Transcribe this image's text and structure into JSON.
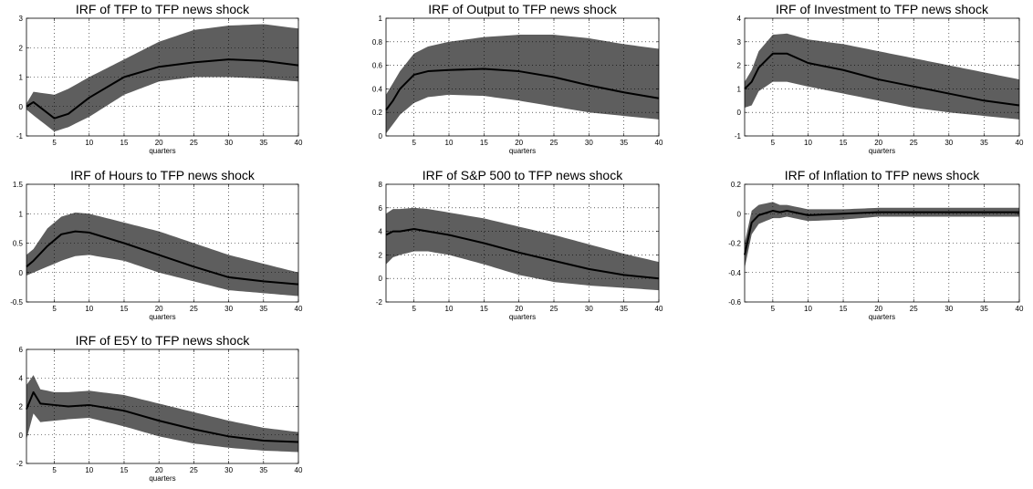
{
  "figure": {
    "background": "#ffffff",
    "band_color": "#5e5e5e",
    "line_color": "#000000",
    "grid": true
  },
  "chart_data": [
    {
      "type": "area",
      "title": "IRF of TFP to TFP news shock",
      "xlabel": "quarters",
      "ylabel": "",
      "xlim": [
        1,
        40
      ],
      "ylim": [
        -1,
        3
      ],
      "xticks": [
        5,
        10,
        15,
        20,
        25,
        30,
        35,
        40
      ],
      "yticks": [
        -1,
        0,
        1,
        2,
        3
      ],
      "x": [
        1,
        2,
        5,
        7,
        10,
        15,
        20,
        25,
        30,
        35,
        40
      ],
      "series": [
        {
          "role": "median",
          "values": [
            0.0,
            0.15,
            -0.4,
            -0.25,
            0.3,
            1.0,
            1.35,
            1.5,
            1.6,
            1.55,
            1.4
          ]
        },
        {
          "role": "upper",
          "values": [
            0.1,
            0.5,
            0.4,
            0.6,
            1.0,
            1.6,
            2.2,
            2.6,
            2.75,
            2.8,
            2.65
          ]
        },
        {
          "role": "lower",
          "values": [
            -0.1,
            -0.3,
            -0.85,
            -0.7,
            -0.35,
            0.4,
            0.85,
            1.0,
            1.0,
            0.95,
            0.85
          ]
        }
      ]
    },
    {
      "type": "area",
      "title": "IRF of Output to TFP news shock",
      "xlabel": "quarters",
      "ylabel": "",
      "xlim": [
        1,
        40
      ],
      "ylim": [
        0,
        1
      ],
      "xticks": [
        5,
        10,
        15,
        20,
        25,
        30,
        35,
        40
      ],
      "yticks": [
        0,
        0.2,
        0.4,
        0.6,
        0.8,
        1
      ],
      "x": [
        1,
        2,
        3,
        5,
        7,
        10,
        15,
        20,
        25,
        30,
        35,
        40
      ],
      "series": [
        {
          "role": "median",
          "values": [
            0.22,
            0.3,
            0.4,
            0.52,
            0.55,
            0.56,
            0.57,
            0.55,
            0.5,
            0.43,
            0.37,
            0.32
          ]
        },
        {
          "role": "upper",
          "values": [
            0.35,
            0.45,
            0.55,
            0.7,
            0.76,
            0.8,
            0.84,
            0.86,
            0.86,
            0.83,
            0.78,
            0.74
          ]
        },
        {
          "role": "lower",
          "values": [
            0.02,
            0.1,
            0.18,
            0.28,
            0.33,
            0.35,
            0.34,
            0.3,
            0.25,
            0.2,
            0.17,
            0.14
          ]
        }
      ]
    },
    {
      "type": "area",
      "title": "IRF of Investment to TFP news shock",
      "xlabel": "quarters",
      "ylabel": "",
      "xlim": [
        1,
        40
      ],
      "ylim": [
        -1,
        4
      ],
      "xticks": [
        5,
        10,
        15,
        20,
        25,
        30,
        35,
        40
      ],
      "yticks": [
        -1,
        0,
        1,
        2,
        3,
        4
      ],
      "x": [
        1,
        2,
        3,
        5,
        7,
        10,
        15,
        20,
        25,
        30,
        35,
        40
      ],
      "series": [
        {
          "role": "median",
          "values": [
            1.0,
            1.3,
            1.9,
            2.5,
            2.5,
            2.1,
            1.8,
            1.4,
            1.1,
            0.8,
            0.5,
            0.3
          ]
        },
        {
          "role": "upper",
          "values": [
            1.3,
            1.8,
            2.6,
            3.3,
            3.35,
            3.1,
            2.9,
            2.6,
            2.3,
            2.0,
            1.7,
            1.4
          ]
        },
        {
          "role": "lower",
          "values": [
            0.2,
            0.3,
            0.9,
            1.3,
            1.3,
            1.1,
            0.8,
            0.5,
            0.2,
            0.0,
            -0.15,
            -0.3
          ]
        }
      ]
    },
    {
      "type": "area",
      "title": "IRF of Hours to TFP news shock",
      "xlabel": "quarters",
      "ylabel": "",
      "xlim": [
        1,
        40
      ],
      "ylim": [
        -0.5,
        1.5
      ],
      "xticks": [
        5,
        10,
        15,
        20,
        25,
        30,
        35,
        40
      ],
      "yticks": [
        -0.5,
        0,
        0.5,
        1,
        1.5
      ],
      "x": [
        1,
        2,
        4,
        6,
        8,
        10,
        15,
        20,
        25,
        30,
        35,
        40
      ],
      "series": [
        {
          "role": "median",
          "values": [
            0.1,
            0.2,
            0.45,
            0.65,
            0.7,
            0.68,
            0.5,
            0.3,
            0.1,
            -0.08,
            -0.15,
            -0.2
          ]
        },
        {
          "role": "upper",
          "values": [
            0.3,
            0.4,
            0.75,
            0.95,
            1.02,
            1.0,
            0.85,
            0.7,
            0.5,
            0.3,
            0.15,
            0.0
          ]
        },
        {
          "role": "lower",
          "values": [
            -0.05,
            0.0,
            0.1,
            0.2,
            0.28,
            0.3,
            0.2,
            0.0,
            -0.15,
            -0.3,
            -0.35,
            -0.4
          ]
        }
      ]
    },
    {
      "type": "area",
      "title": "IRF of S&P 500 to TFP news shock",
      "xlabel": "quarters",
      "ylabel": "",
      "xlim": [
        1,
        40
      ],
      "ylim": [
        -2,
        8
      ],
      "xticks": [
        5,
        10,
        15,
        20,
        25,
        30,
        35,
        40
      ],
      "yticks": [
        -2,
        0,
        2,
        4,
        6,
        8
      ],
      "x": [
        1,
        2,
        3,
        5,
        7,
        10,
        15,
        20,
        25,
        30,
        35,
        40
      ],
      "series": [
        {
          "role": "median",
          "values": [
            3.7,
            4.0,
            4.0,
            4.2,
            4.0,
            3.7,
            3.0,
            2.2,
            1.5,
            0.8,
            0.3,
            0.0
          ]
        },
        {
          "role": "upper",
          "values": [
            5.5,
            5.9,
            5.9,
            6.0,
            5.9,
            5.6,
            5.1,
            4.4,
            3.7,
            2.9,
            2.1,
            1.4
          ]
        },
        {
          "role": "lower",
          "values": [
            1.2,
            1.8,
            2.0,
            2.3,
            2.3,
            2.0,
            1.2,
            0.3,
            -0.3,
            -0.6,
            -0.8,
            -1.0
          ]
        }
      ]
    },
    {
      "type": "area",
      "title": "IRF of Inflation to TFP news shock",
      "xlabel": "quarters",
      "ylabel": "",
      "xlim": [
        1,
        40
      ],
      "ylim": [
        -0.6,
        0.2
      ],
      "xticks": [
        5,
        10,
        15,
        20,
        25,
        30,
        35,
        40
      ],
      "yticks": [
        -0.6,
        -0.4,
        -0.2,
        0,
        0.2
      ],
      "x": [
        1,
        2,
        3,
        5,
        6,
        7,
        10,
        15,
        20,
        25,
        30,
        35,
        40
      ],
      "series": [
        {
          "role": "median",
          "values": [
            -0.28,
            -0.06,
            -0.01,
            0.02,
            0.01,
            0.02,
            -0.01,
            0.0,
            0.01,
            0.01,
            0.01,
            0.01,
            0.01
          ]
        },
        {
          "role": "upper",
          "values": [
            -0.2,
            0.02,
            0.06,
            0.08,
            0.06,
            0.06,
            0.03,
            0.03,
            0.04,
            0.04,
            0.04,
            0.04,
            0.04
          ]
        },
        {
          "role": "lower",
          "values": [
            -0.37,
            -0.14,
            -0.07,
            -0.03,
            -0.03,
            -0.02,
            -0.05,
            -0.04,
            -0.02,
            -0.02,
            -0.02,
            -0.02,
            -0.02
          ]
        }
      ]
    },
    {
      "type": "area",
      "title": "IRF of E5Y to TFP news shock",
      "xlabel": "quarters",
      "ylabel": "",
      "xlim": [
        1,
        40
      ],
      "ylim": [
        -2,
        6
      ],
      "xticks": [
        5,
        10,
        15,
        20,
        25,
        30,
        35,
        40
      ],
      "yticks": [
        -2,
        0,
        2,
        4,
        6
      ],
      "x": [
        1,
        2,
        3,
        5,
        7,
        10,
        15,
        20,
        25,
        30,
        35,
        40
      ],
      "series": [
        {
          "role": "median",
          "values": [
            1.8,
            3.0,
            2.2,
            2.1,
            2.0,
            2.1,
            1.7,
            1.0,
            0.4,
            -0.1,
            -0.4,
            -0.5
          ]
        },
        {
          "role": "upper",
          "values": [
            3.5,
            4.2,
            3.2,
            3.0,
            3.0,
            3.1,
            2.8,
            2.2,
            1.6,
            1.0,
            0.5,
            0.2
          ]
        },
        {
          "role": "lower",
          "values": [
            -0.3,
            1.5,
            0.9,
            1.0,
            1.1,
            1.2,
            0.6,
            -0.1,
            -0.6,
            -0.9,
            -1.1,
            -1.2
          ]
        }
      ]
    }
  ]
}
